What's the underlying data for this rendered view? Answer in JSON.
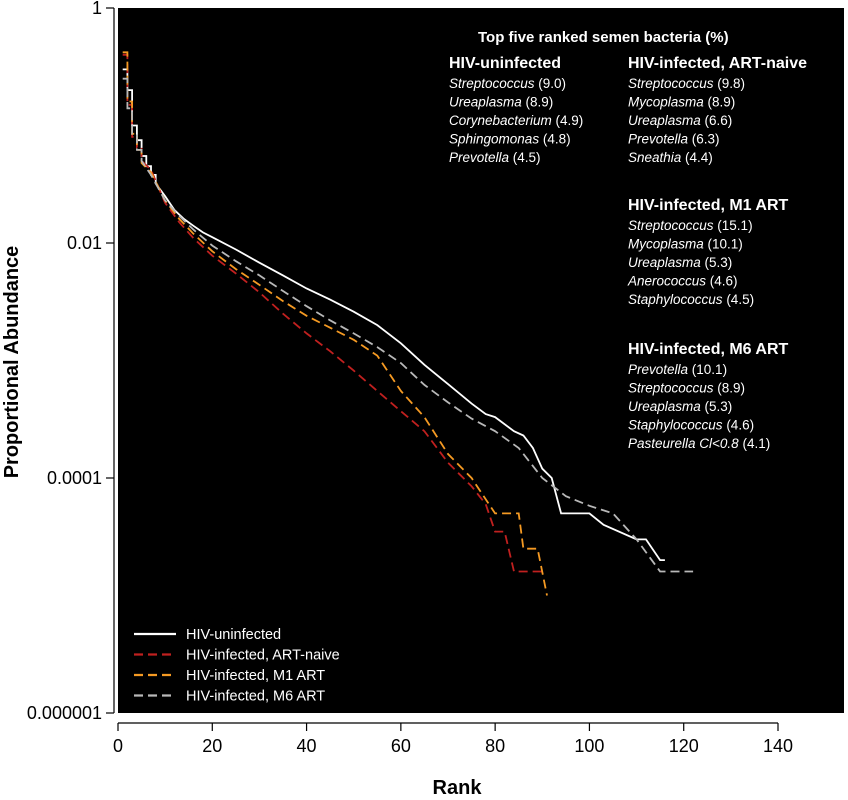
{
  "chart_data": {
    "type": "line",
    "title": "",
    "xlabel": "Rank",
    "ylabel": "Proportional Abundance",
    "y_scale": "log",
    "xlim": [
      0,
      154
    ],
    "ylim": [
      1e-06,
      1
    ],
    "x_ticks": [
      0,
      20,
      40,
      60,
      80,
      100,
      120,
      140
    ],
    "x_tick_labels": [
      "0",
      "20",
      "40",
      "60",
      "80",
      "100",
      "120",
      "140"
    ],
    "y_ticks": [
      1,
      0.01,
      0.0001,
      1e-06
    ],
    "y_tick_labels": [
      "1",
      "0.01",
      "0.0001",
      "0.000001"
    ],
    "background": "#000000",
    "grid": false,
    "legend_position": "bottom-left",
    "series": [
      {
        "name": "HIV-uninfected",
        "color": "#ffffff",
        "dash": "solid",
        "points": [
          [
            1,
            0.3
          ],
          [
            2,
            0.3
          ],
          [
            2,
            0.2
          ],
          [
            3,
            0.2
          ],
          [
            3,
            0.1
          ],
          [
            4,
            0.1
          ],
          [
            4,
            0.075
          ],
          [
            5,
            0.075
          ],
          [
            5,
            0.055
          ],
          [
            6,
            0.055
          ],
          [
            6,
            0.045
          ],
          [
            7,
            0.045
          ],
          [
            7,
            0.038
          ],
          [
            8,
            0.038
          ],
          [
            8,
            0.032
          ],
          [
            10,
            0.025
          ],
          [
            12,
            0.019
          ],
          [
            14,
            0.016
          ],
          [
            16,
            0.014
          ],
          [
            18,
            0.0123
          ],
          [
            20,
            0.0112
          ],
          [
            25,
            0.0088
          ],
          [
            30,
            0.0068
          ],
          [
            35,
            0.0053
          ],
          [
            40,
            0.0041
          ],
          [
            45,
            0.0033
          ],
          [
            50,
            0.0026
          ],
          [
            55,
            0.002
          ],
          [
            60,
            0.0014
          ],
          [
            65,
            0.00092
          ],
          [
            70,
            0.00063
          ],
          [
            75,
            0.00043
          ],
          [
            78,
            0.00035
          ],
          [
            80,
            0.00033
          ],
          [
            84,
            0.00025
          ],
          [
            86,
            0.00023
          ],
          [
            88,
            0.00018
          ],
          [
            90,
            0.00012
          ],
          [
            92,
            0.0001
          ],
          [
            94,
            5e-05
          ],
          [
            100,
            5e-05
          ],
          [
            103,
            4e-05
          ],
          [
            110,
            3e-05
          ],
          [
            112,
            3e-05
          ],
          [
            115,
            2e-05
          ],
          [
            116,
            2e-05
          ]
        ]
      },
      {
        "name": "HIV-infected, ART-naive",
        "color": "#c0201f",
        "dash": "dashed",
        "points": [
          [
            1,
            0.4
          ],
          [
            2,
            0.4
          ],
          [
            2,
            0.15
          ],
          [
            3,
            0.15
          ],
          [
            3,
            0.08
          ],
          [
            4,
            0.08
          ],
          [
            4,
            0.065
          ],
          [
            5,
            0.065
          ],
          [
            5,
            0.05
          ],
          [
            7,
            0.042
          ],
          [
            10,
            0.022
          ],
          [
            13,
            0.015
          ],
          [
            16,
            0.011
          ],
          [
            20,
            0.0078
          ],
          [
            25,
            0.0055
          ],
          [
            30,
            0.0038
          ],
          [
            35,
            0.0025
          ],
          [
            40,
            0.0017
          ],
          [
            45,
            0.0012
          ],
          [
            50,
            0.00082
          ],
          [
            55,
            0.00055
          ],
          [
            60,
            0.00037
          ],
          [
            65,
            0.00025
          ],
          [
            70,
            0.000135
          ],
          [
            75,
            8.5e-05
          ],
          [
            78,
            6e-05
          ],
          [
            80,
            3.5e-05
          ],
          [
            82,
            3.5e-05
          ],
          [
            84,
            1.6e-05
          ],
          [
            90,
            1.6e-05
          ]
        ]
      },
      {
        "name": "HIV-infected, M1 ART",
        "color": "#f59a23",
        "dash": "dashed",
        "points": [
          [
            1,
            0.42
          ],
          [
            2,
            0.42
          ],
          [
            2,
            0.16
          ],
          [
            3,
            0.16
          ],
          [
            3,
            0.085
          ],
          [
            4,
            0.085
          ],
          [
            4,
            0.062
          ],
          [
            5,
            0.062
          ],
          [
            5,
            0.048
          ],
          [
            7,
            0.04
          ],
          [
            10,
            0.023
          ],
          [
            13,
            0.016
          ],
          [
            16,
            0.012
          ],
          [
            20,
            0.0085
          ],
          [
            25,
            0.006
          ],
          [
            30,
            0.0044
          ],
          [
            35,
            0.0032
          ],
          [
            40,
            0.0024
          ],
          [
            45,
            0.0019
          ],
          [
            50,
            0.0015
          ],
          [
            55,
            0.0011
          ],
          [
            60,
            0.00055
          ],
          [
            65,
            0.00033
          ],
          [
            70,
            0.00016
          ],
          [
            75,
            0.0001
          ],
          [
            80,
            5e-05
          ],
          [
            85,
            5e-05
          ],
          [
            86,
            2.5e-05
          ],
          [
            89,
            2.5e-05
          ],
          [
            91,
            1e-05
          ]
        ]
      },
      {
        "name": "HIV-infected, M6 ART",
        "color": "#b8b8b8",
        "dash": "dashed",
        "points": [
          [
            1,
            0.25
          ],
          [
            2,
            0.25
          ],
          [
            2,
            0.14
          ],
          [
            3,
            0.14
          ],
          [
            3,
            0.085
          ],
          [
            4,
            0.085
          ],
          [
            4,
            0.062
          ],
          [
            5,
            0.062
          ],
          [
            5,
            0.05
          ],
          [
            7,
            0.038
          ],
          [
            10,
            0.023
          ],
          [
            13,
            0.017
          ],
          [
            16,
            0.013
          ],
          [
            20,
            0.0095
          ],
          [
            25,
            0.007
          ],
          [
            30,
            0.0053
          ],
          [
            35,
            0.0039
          ],
          [
            40,
            0.0029
          ],
          [
            45,
            0.0022
          ],
          [
            50,
            0.0017
          ],
          [
            55,
            0.0013
          ],
          [
            60,
            0.00095
          ],
          [
            65,
            0.00062
          ],
          [
            70,
            0.00044
          ],
          [
            75,
            0.00032
          ],
          [
            80,
            0.00025
          ],
          [
            85,
            0.00018
          ],
          [
            90,
            0.0001
          ],
          [
            95,
            7e-05
          ],
          [
            100,
            5.8e-05
          ],
          [
            105,
            5e-05
          ],
          [
            110,
            3e-05
          ],
          [
            115,
            1.6e-05
          ],
          [
            122,
            1.6e-05
          ]
        ]
      }
    ],
    "annotations": {
      "title": "Top five ranked semen bacteria  (%)",
      "groups": [
        {
          "heading": "HIV-uninfected",
          "items": [
            {
              "genus": "Streptococcus",
              "pct": "(9.0)"
            },
            {
              "genus": "Ureaplasma",
              "pct": "(8.9)"
            },
            {
              "genus": "Corynebacterium",
              "pct": "(4.9)"
            },
            {
              "genus": "Sphingomonas",
              "pct": "(4.8)"
            },
            {
              "genus": "Prevotella",
              "pct": "(4.5)"
            }
          ]
        },
        {
          "heading": "HIV-infected, ART-naive",
          "items": [
            {
              "genus": "Streptococcus",
              "pct": "(9.8)"
            },
            {
              "genus": "Mycoplasma",
              "pct": "(8.9)"
            },
            {
              "genus": "Ureaplasma",
              "pct": "(6.6)"
            },
            {
              "genus": "Prevotella",
              "pct": "(6.3)"
            },
            {
              "genus": "Sneathia",
              "pct": "(4.4)"
            }
          ]
        },
        {
          "heading": "HIV-infected, M1 ART",
          "items": [
            {
              "genus": "Streptococcus",
              "pct": "(15.1)"
            },
            {
              "genus": "Mycoplasma",
              "pct": "(10.1)"
            },
            {
              "genus": "Ureaplasma",
              "pct": "(5.3)"
            },
            {
              "genus": "Anerococcus",
              "pct": "(4.6)"
            },
            {
              "genus": "Staphylococcus",
              "pct": "(4.5)"
            }
          ]
        },
        {
          "heading": "HIV-infected, M6 ART",
          "items": [
            {
              "genus": "Prevotella",
              "pct": "(10.1)"
            },
            {
              "genus": "Streptococcus",
              "pct": "(8.9)"
            },
            {
              "genus": "Ureaplasma",
              "pct": "(5.3)"
            },
            {
              "genus": "Staphylococcus",
              "pct": "(4.6)"
            },
            {
              "genus": "Pasteurella Cl<0.8",
              "pct": "(4.1)"
            }
          ]
        }
      ]
    }
  }
}
